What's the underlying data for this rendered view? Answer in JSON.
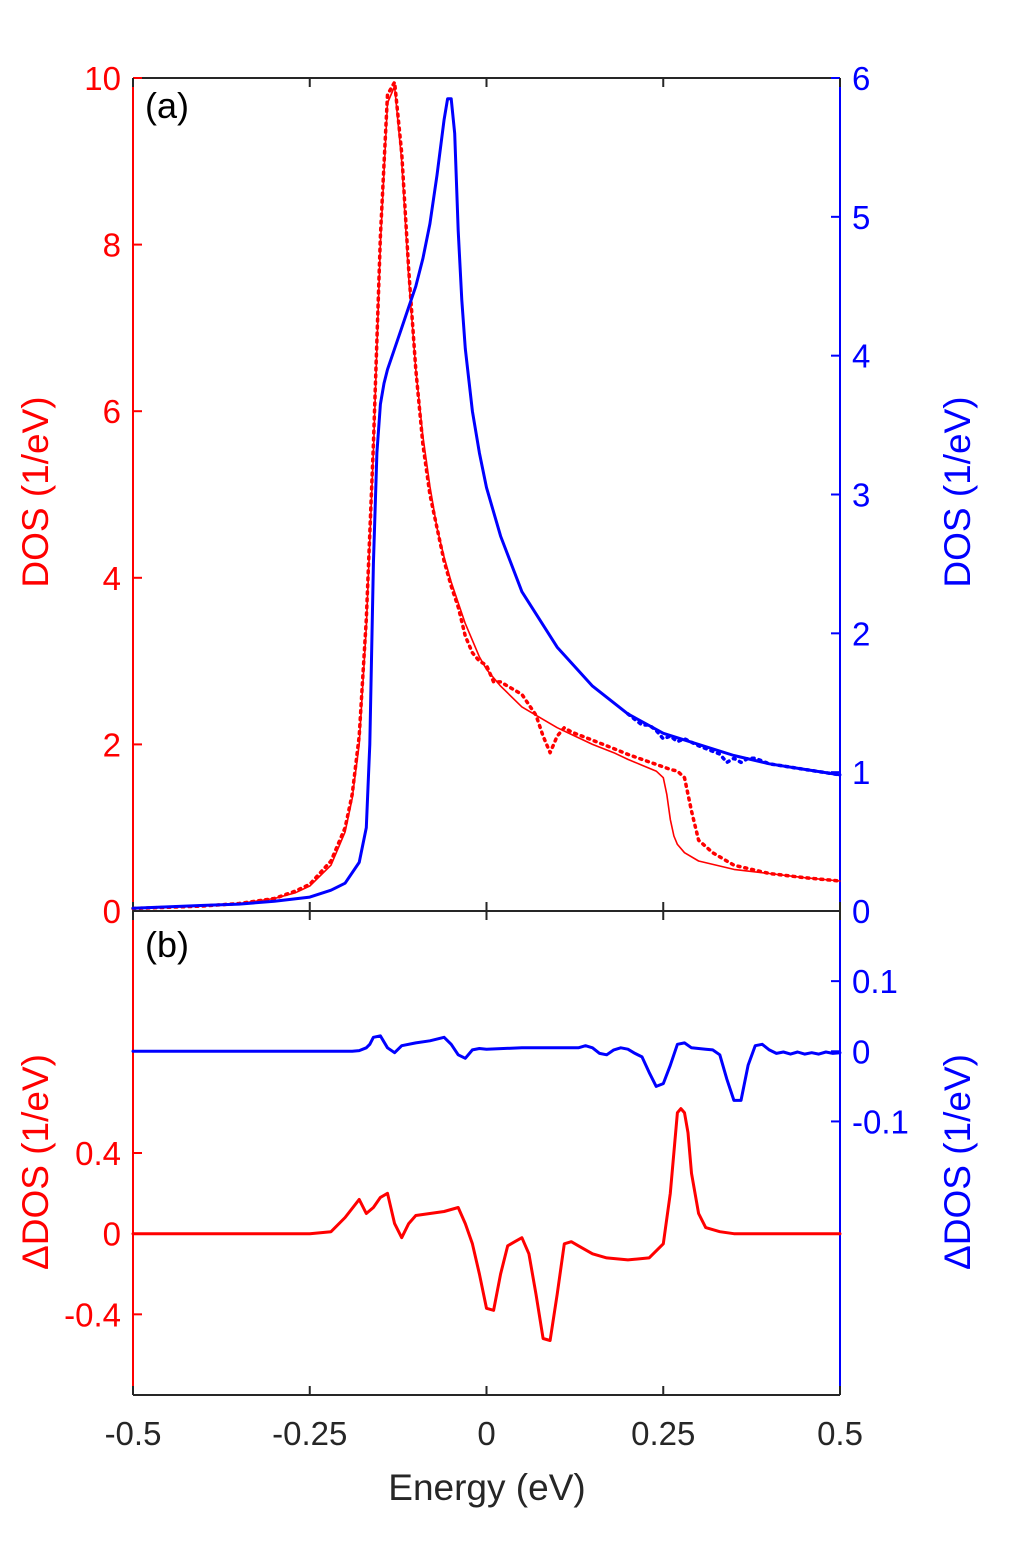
{
  "chart_data": [
    {
      "panel": "(a)",
      "type": "line",
      "xlabel": "Energy (eV)",
      "xlim": [
        -0.5,
        0.5
      ],
      "x_ticks": [
        -0.5,
        -0.25,
        0,
        0.25,
        0.5
      ],
      "x_tick_labels": [
        "-0.5",
        "-0.25",
        "0",
        "0.25",
        "0.5"
      ],
      "ylabel_left": "DOS (1/eV)",
      "ylim_left": [
        0,
        10
      ],
      "y_ticks_left": [
        0,
        2,
        4,
        6,
        8,
        10
      ],
      "ylabel_right": "DOS (1/eV)",
      "ylim_right": [
        0,
        6
      ],
      "y_ticks_right": [
        0,
        1,
        2,
        3,
        4,
        5,
        6
      ],
      "left_color": "#ff0000",
      "right_color": "#0000ff",
      "series": [
        {
          "name": "red solid",
          "axis": "left",
          "color": "#ff0000",
          "style": "solid",
          "x": [
            -0.5,
            -0.4,
            -0.35,
            -0.3,
            -0.27,
            -0.25,
            -0.22,
            -0.2,
            -0.19,
            -0.18,
            -0.17,
            -0.16,
            -0.15,
            -0.14,
            -0.13,
            -0.12,
            -0.11,
            -0.1,
            -0.09,
            -0.08,
            -0.07,
            -0.06,
            -0.05,
            -0.04,
            -0.03,
            -0.02,
            -0.01,
            0,
            0.02,
            0.05,
            0.08,
            0.1,
            0.12,
            0.15,
            0.18,
            0.2,
            0.22,
            0.24,
            0.25,
            0.255,
            0.26,
            0.265,
            0.27,
            0.28,
            0.3,
            0.35,
            0.4,
            0.45,
            0.5
          ],
          "y": [
            0.03,
            0.06,
            0.09,
            0.15,
            0.22,
            0.3,
            0.55,
            0.95,
            1.35,
            2.0,
            3.4,
            5.5,
            8.0,
            9.7,
            9.9,
            9.0,
            7.6,
            6.5,
            5.7,
            5.1,
            4.6,
            4.25,
            3.95,
            3.7,
            3.45,
            3.25,
            3.05,
            2.9,
            2.7,
            2.45,
            2.3,
            2.2,
            2.12,
            2.0,
            1.9,
            1.82,
            1.75,
            1.68,
            1.6,
            1.4,
            1.1,
            0.9,
            0.8,
            0.7,
            0.6,
            0.5,
            0.45,
            0.4,
            0.36
          ]
        },
        {
          "name": "red dotted",
          "axis": "left",
          "color": "#ff0000",
          "style": "dotted",
          "x": [
            -0.5,
            -0.4,
            -0.35,
            -0.3,
            -0.27,
            -0.25,
            -0.22,
            -0.2,
            -0.19,
            -0.18,
            -0.17,
            -0.16,
            -0.15,
            -0.14,
            -0.13,
            -0.12,
            -0.11,
            -0.1,
            -0.09,
            -0.08,
            -0.07,
            -0.06,
            -0.05,
            -0.04,
            -0.03,
            -0.02,
            -0.01,
            0,
            0.01,
            0.02,
            0.03,
            0.05,
            0.07,
            0.08,
            0.09,
            0.1,
            0.11,
            0.12,
            0.15,
            0.18,
            0.2,
            0.22,
            0.24,
            0.25,
            0.26,
            0.27,
            0.28,
            0.29,
            0.3,
            0.32,
            0.35,
            0.4,
            0.45,
            0.5
          ],
          "y": [
            0.03,
            0.06,
            0.09,
            0.15,
            0.24,
            0.32,
            0.6,
            1.0,
            1.4,
            2.1,
            3.5,
            5.6,
            8.1,
            9.8,
            9.95,
            9.1,
            7.7,
            6.5,
            5.6,
            5.0,
            4.6,
            4.2,
            3.9,
            3.65,
            3.3,
            3.1,
            3.0,
            2.95,
            2.75,
            2.75,
            2.7,
            2.6,
            2.35,
            2.1,
            1.9,
            2.1,
            2.2,
            2.15,
            2.05,
            1.95,
            1.88,
            1.82,
            1.76,
            1.73,
            1.7,
            1.68,
            1.6,
            1.2,
            0.85,
            0.7,
            0.55,
            0.45,
            0.4,
            0.36
          ]
        },
        {
          "name": "blue solid",
          "axis": "right",
          "color": "#0000ff",
          "style": "solid",
          "x": [
            -0.5,
            -0.4,
            -0.35,
            -0.3,
            -0.25,
            -0.22,
            -0.2,
            -0.18,
            -0.17,
            -0.165,
            -0.16,
            -0.155,
            -0.15,
            -0.145,
            -0.14,
            -0.13,
            -0.12,
            -0.11,
            -0.1,
            -0.09,
            -0.08,
            -0.07,
            -0.06,
            -0.055,
            -0.05,
            -0.045,
            -0.04,
            -0.035,
            -0.03,
            -0.02,
            -0.01,
            0,
            0.02,
            0.05,
            0.1,
            0.15,
            0.2,
            0.25,
            0.3,
            0.35,
            0.4,
            0.45,
            0.5
          ],
          "y": [
            0.02,
            0.04,
            0.05,
            0.07,
            0.1,
            0.15,
            0.2,
            0.35,
            0.6,
            1.2,
            2.5,
            3.3,
            3.65,
            3.8,
            3.9,
            4.05,
            4.2,
            4.35,
            4.5,
            4.7,
            4.95,
            5.3,
            5.7,
            5.85,
            5.85,
            5.6,
            4.9,
            4.4,
            4.05,
            3.6,
            3.3,
            3.05,
            2.7,
            2.3,
            1.9,
            1.62,
            1.42,
            1.28,
            1.2,
            1.12,
            1.06,
            1.02,
            0.98
          ]
        },
        {
          "name": "blue dotted",
          "axis": "right",
          "color": "#0000ff",
          "style": "dotted",
          "x": [
            0.2,
            0.22,
            0.23,
            0.24,
            0.25,
            0.26,
            0.27,
            0.28,
            0.3,
            0.32,
            0.33,
            0.34,
            0.35,
            0.36,
            0.37,
            0.38,
            0.4,
            0.45,
            0.5
          ],
          "y": [
            1.42,
            1.34,
            1.34,
            1.3,
            1.24,
            1.26,
            1.22,
            1.24,
            1.19,
            1.15,
            1.13,
            1.07,
            1.1,
            1.07,
            1.1,
            1.1,
            1.06,
            1.02,
            0.98
          ]
        }
      ]
    },
    {
      "panel": "(b)",
      "type": "line",
      "xlabel": "Energy (eV)",
      "xlim": [
        -0.5,
        0.5
      ],
      "ylabel_left": "ΔDOS (1/eV)",
      "ylim_left": [
        -0.8,
        1.6
      ],
      "y_ticks_left": [
        -0.4,
        0,
        0.4
      ],
      "y_tick_labels_left": [
        "-0.4",
        "0",
        "0.4"
      ],
      "ylabel_right": "ΔDOS (1/eV)",
      "ylim_right": [
        -0.49,
        0.2
      ],
      "y_ticks_right": [
        -0.1,
        0,
        0.1
      ],
      "y_tick_labels_right": [
        "-0.1",
        "0",
        "0.1"
      ],
      "series": [
        {
          "name": "red ΔDOS",
          "axis": "left",
          "color": "#ff0000",
          "x": [
            -0.5,
            -0.25,
            -0.22,
            -0.2,
            -0.18,
            -0.17,
            -0.16,
            -0.15,
            -0.14,
            -0.13,
            -0.12,
            -0.11,
            -0.1,
            -0.08,
            -0.06,
            -0.04,
            -0.03,
            -0.02,
            -0.01,
            0,
            0.01,
            0.02,
            0.03,
            0.04,
            0.05,
            0.06,
            0.07,
            0.08,
            0.09,
            0.1,
            0.11,
            0.12,
            0.13,
            0.15,
            0.17,
            0.2,
            0.23,
            0.25,
            0.26,
            0.27,
            0.275,
            0.28,
            0.285,
            0.29,
            0.3,
            0.31,
            0.33,
            0.35,
            0.5
          ],
          "y": [
            0,
            0,
            0.01,
            0.08,
            0.17,
            0.1,
            0.13,
            0.18,
            0.2,
            0.05,
            -0.02,
            0.05,
            0.09,
            0.1,
            0.11,
            0.13,
            0.05,
            -0.05,
            -0.2,
            -0.37,
            -0.38,
            -0.2,
            -0.06,
            -0.04,
            -0.02,
            -0.1,
            -0.3,
            -0.52,
            -0.53,
            -0.3,
            -0.05,
            -0.04,
            -0.06,
            -0.1,
            -0.12,
            -0.13,
            -0.12,
            -0.05,
            0.2,
            0.6,
            0.62,
            0.6,
            0.5,
            0.3,
            0.1,
            0.03,
            0.01,
            0,
            0
          ]
        },
        {
          "name": "blue ΔDOS",
          "axis": "right",
          "color": "#0000ff",
          "x": [
            -0.5,
            -0.4,
            -0.38,
            -0.36,
            -0.35,
            -0.34,
            -0.33,
            -0.32,
            -0.3,
            -0.28,
            -0.25,
            -0.23,
            -0.2,
            -0.19,
            -0.18,
            -0.17,
            -0.165,
            -0.16,
            -0.15,
            -0.14,
            -0.13,
            -0.12,
            -0.1,
            -0.08,
            -0.06,
            -0.05,
            -0.04,
            -0.03,
            -0.02,
            -0.01,
            0,
            0.05,
            0.1,
            0.12,
            0.13,
            0.14,
            0.15,
            0.16,
            0.17,
            0.18,
            0.19,
            0.2,
            0.21,
            0.22,
            0.23,
            0.24,
            0.25,
            0.26,
            0.27,
            0.28,
            0.29,
            0.3,
            0.31,
            0.32,
            0.33,
            0.34,
            0.35,
            0.36,
            0.37,
            0.38,
            0.39,
            0.4,
            0.41,
            0.42,
            0.43,
            0.44,
            0.45,
            0.46,
            0.47,
            0.48,
            0.49,
            0.5
          ],
          "y": [
            0,
            0,
            0,
            0,
            0,
            0,
            0,
            0,
            0,
            0,
            0,
            0,
            0,
            0,
            0.001,
            0.005,
            0.01,
            0.02,
            0.022,
            0.005,
            -0.002,
            0.008,
            0.012,
            0.015,
            0.02,
            0.01,
            -0.005,
            -0.01,
            0.002,
            0.004,
            0.003,
            0.005,
            0.005,
            0.005,
            0.005,
            0.008,
            0.005,
            -0.003,
            -0.005,
            0.002,
            0.005,
            0.003,
            -0.003,
            -0.008,
            -0.03,
            -0.05,
            -0.046,
            -0.02,
            0.01,
            0.012,
            0.005,
            0.004,
            0.003,
            0.002,
            -0.005,
            -0.04,
            -0.07,
            -0.07,
            -0.02,
            0.008,
            0.01,
            0.002,
            -0.003,
            -0.001,
            -0.004,
            -0.001,
            -0.004,
            -0.002,
            -0.004,
            -0.001,
            -0.003,
            -0.002
          ]
        }
      ]
    }
  ]
}
